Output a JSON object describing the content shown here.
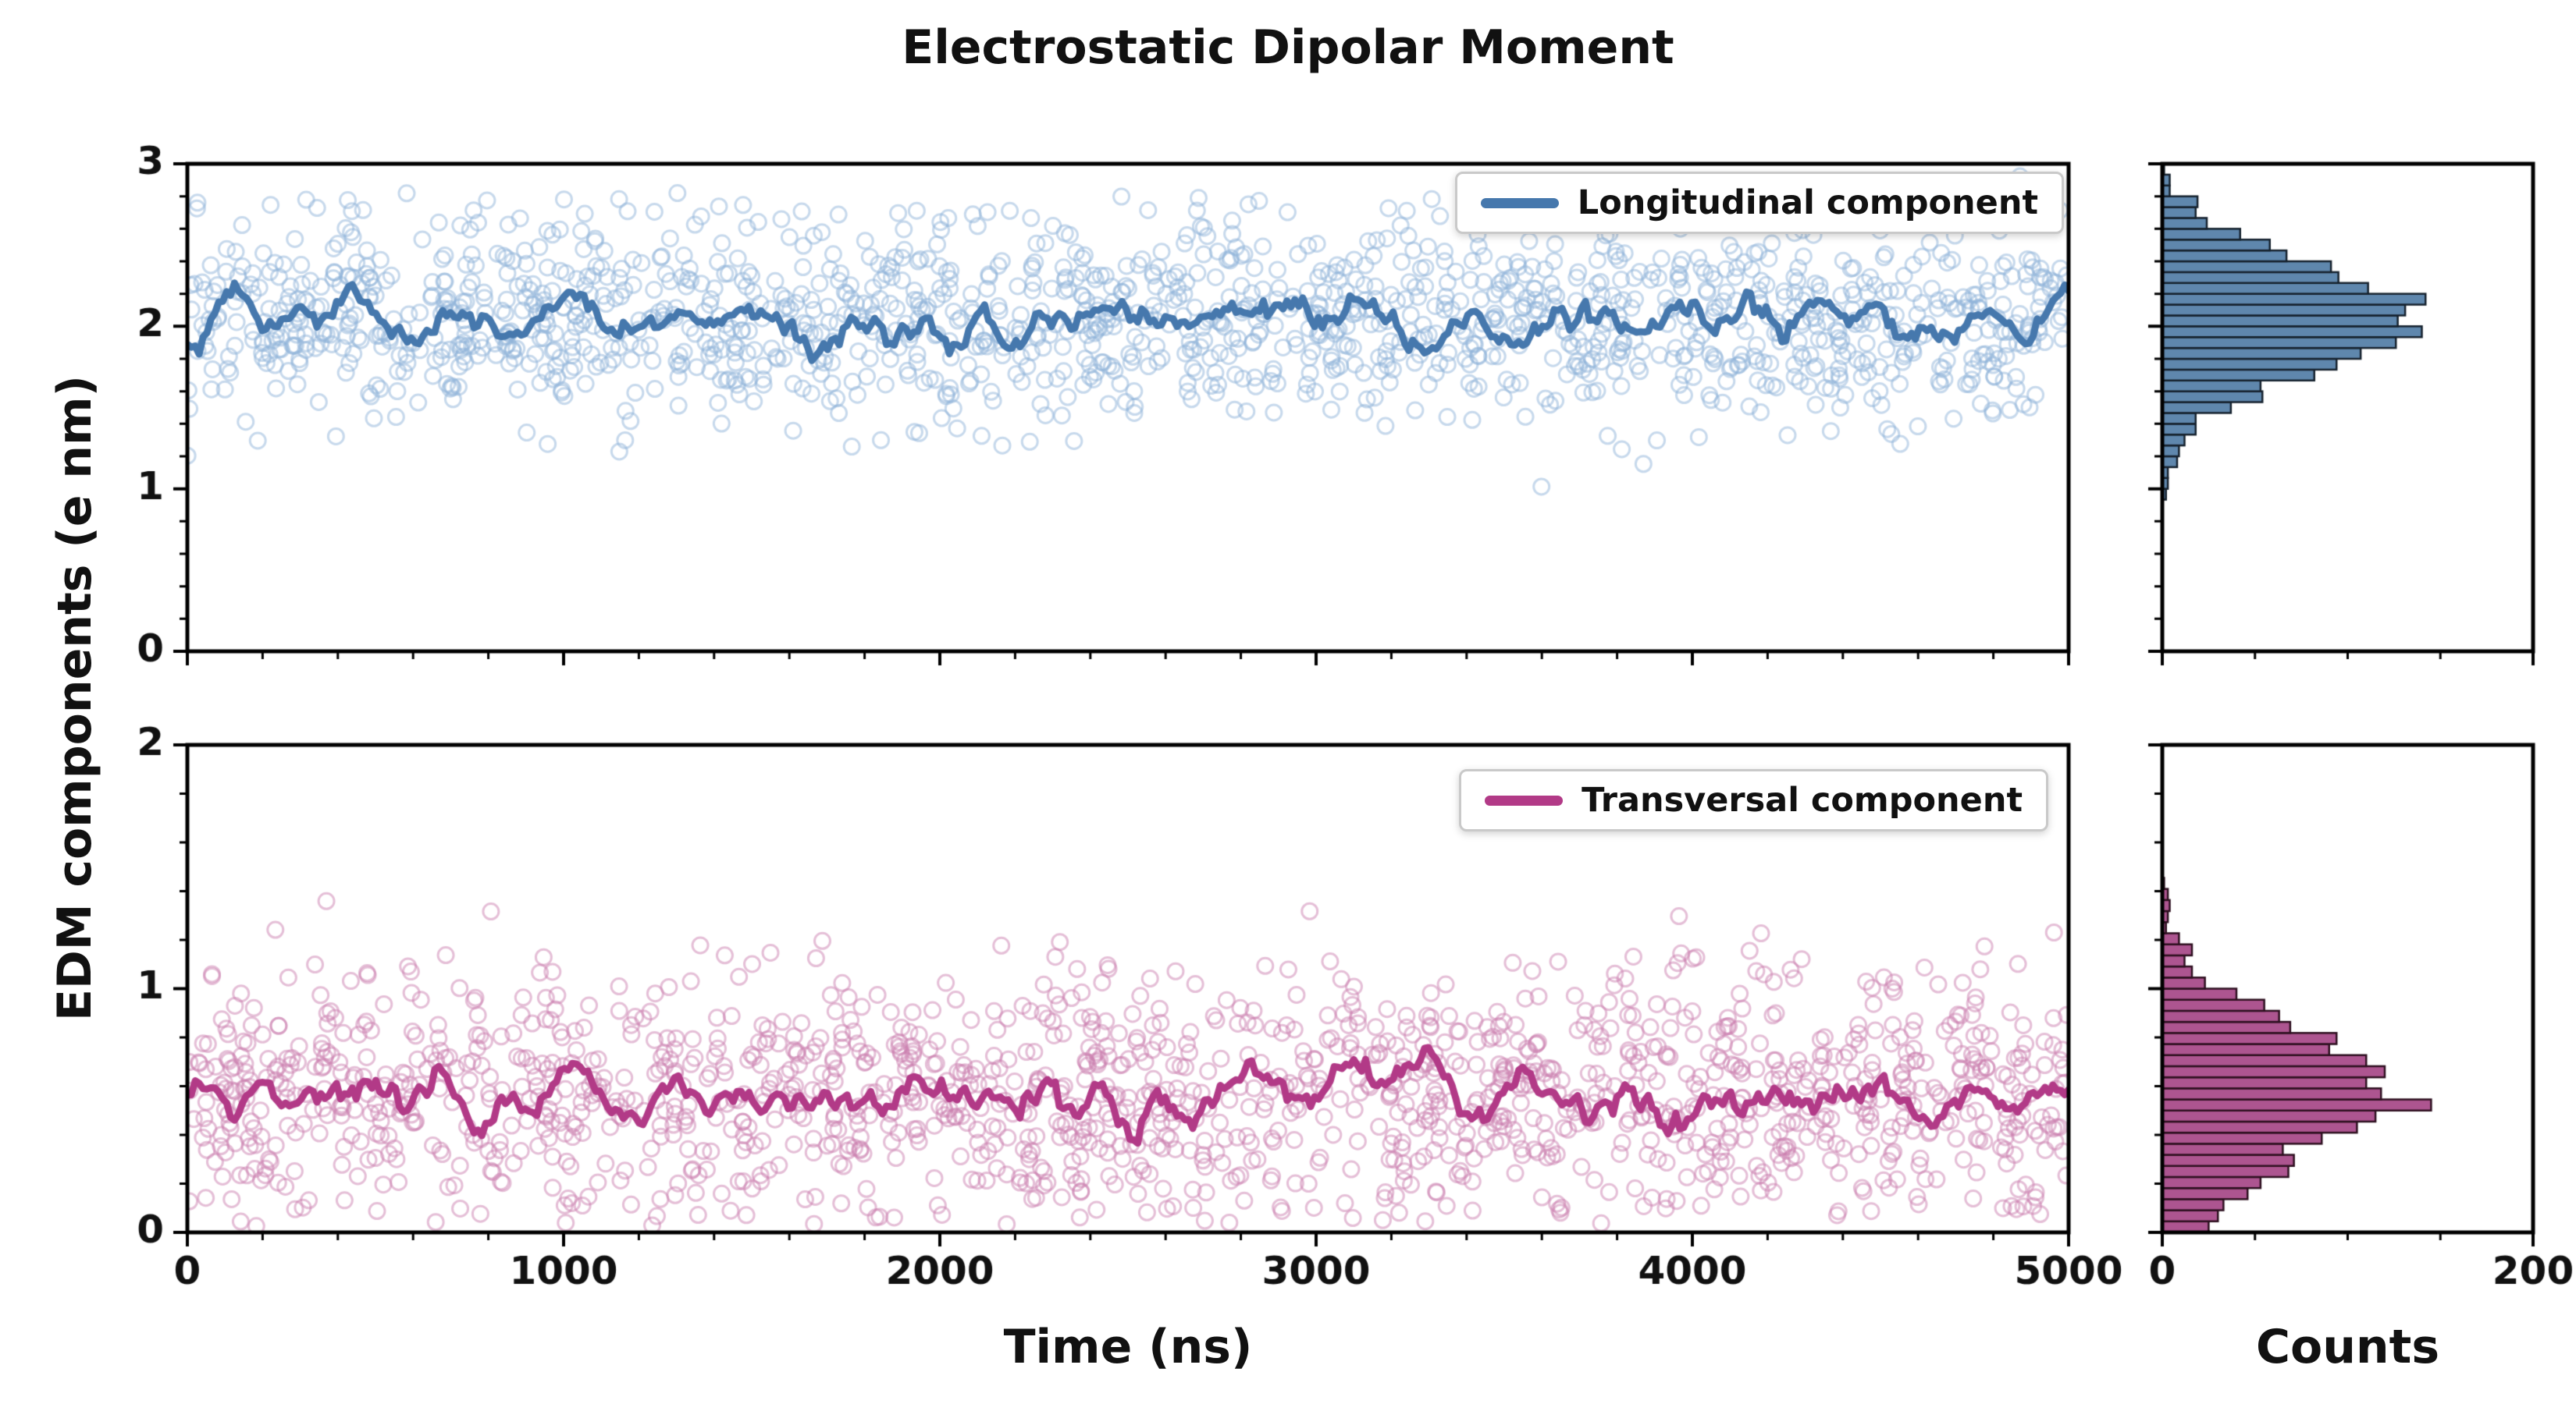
{
  "title": "Electrostatic Dipolar Moment",
  "ylabel": "EDM components (e nm)",
  "xlabel_main": "Time (ns)",
  "xlabel_hist": "Counts",
  "colors": {
    "axis": "#000000",
    "text": "#111111",
    "longitudinal": {
      "scatter": "#8fb4da",
      "line": "#4678ad"
    },
    "transversal": {
      "scatter": "#cc7fb0",
      "line": "#b23a87"
    },
    "hist_longitudinal": {
      "fill": "#5f87ad",
      "edge": "#16222e"
    },
    "hist_transversal": {
      "fill": "#ad5590",
      "edge": "#2e1020"
    }
  },
  "chart_data": {
    "type": "scatter",
    "title": "Electrostatic Dipolar Moment",
    "xlabel": "Time (ns)",
    "ylabel": "EDM components (e nm)",
    "hist_xlabel": "Counts",
    "legend_position": "upper right",
    "panels": {
      "longitudinal": {
        "type": "scatter",
        "legend": "Longitudinal component",
        "xlim": [
          0,
          5000
        ],
        "ylim": [
          0,
          3
        ],
        "x_ticks": [
          0,
          1000,
          2000,
          3000,
          4000,
          5000
        ],
        "y_ticks": [
          0,
          1,
          2,
          3
        ],
        "x_minor_step": 200,
        "y_minor_step": 0.2,
        "x_tick_labels_visible": false,
        "n_points": 1500,
        "mean": 2.05,
        "std": 0.33,
        "y_clip": [
          0.72,
          2.95
        ],
        "trend_base": 2.03,
        "trend_wiggle_fast": 0.085,
        "trend_wiggle_slow": 0.045,
        "seed": 42
      },
      "transversal": {
        "type": "scatter",
        "legend": "Transversal component",
        "xlim": [
          0,
          5000
        ],
        "ylim": [
          0,
          2
        ],
        "x_ticks": [
          0,
          1000,
          2000,
          3000,
          4000,
          5000
        ],
        "y_ticks": [
          0,
          1,
          2
        ],
        "x_minor_step": 200,
        "y_minor_step": 0.2,
        "x_tick_labels_visible": true,
        "n_points": 1500,
        "mean": 0.56,
        "std": 0.27,
        "folded": true,
        "y_clip": [
          0.02,
          1.38
        ],
        "trend_base": 0.565,
        "trend_wiggle_fast": 0.06,
        "trend_wiggle_slow": 0.035,
        "seed": 77
      },
      "hist_longitudinal": {
        "type": "histogram",
        "orientation": "horizontal",
        "xlim": [
          0,
          200
        ],
        "x_ticks": [
          0,
          200
        ],
        "x_minor_step": 50,
        "bins": 45,
        "value_range": [
          0,
          3
        ],
        "sample_n": 1700,
        "mean": 2.05,
        "std": 0.33,
        "x_tick_labels_visible": false,
        "seed": 1234
      },
      "hist_transversal": {
        "type": "histogram",
        "orientation": "horizontal",
        "xlim": [
          0,
          200
        ],
        "x_ticks": [
          0,
          200
        ],
        "x_minor_step": 50,
        "bins": 44,
        "value_range": [
          0,
          2
        ],
        "sample_n": 1800,
        "mean": 0.56,
        "std": 0.27,
        "folded": true,
        "x_tick_labels_visible": true,
        "seed": 4321
      }
    }
  }
}
